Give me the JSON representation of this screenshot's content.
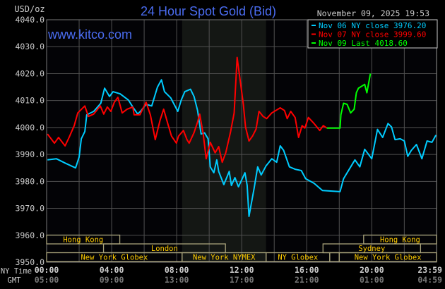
{
  "header": {
    "unit": "USD/oz",
    "title": "24 Hour Spot Gold (Bid)",
    "datetime": "November 09, 2025 19:53",
    "watermark": "www.kitco.com"
  },
  "legend": [
    {
      "label": "Nov 06 NY close 3976.20",
      "color": "#00ccff"
    },
    {
      "label": "Nov 07 NY close 3999.60",
      "color": "#ff0000"
    },
    {
      "label": "Nov 09 Last 4018.60",
      "color": "#00ff00"
    }
  ],
  "colors": {
    "background": "#000000",
    "plot": "#030306",
    "shade": "#141714",
    "grid": "#505050",
    "axis_text": "#cccccc",
    "gmt_text": "#777777",
    "title": "#4a6cf0",
    "session_text": "#ffcc00",
    "session_border": "#a8a27a"
  },
  "chart_data": {
    "type": "line",
    "title": "24 Hour Spot Gold (Bid)",
    "ylabel": "USD/oz",
    "ylim": [
      3950,
      4040
    ],
    "xlim": [
      "00:00",
      "23:59"
    ],
    "grid": true,
    "legend_position": "top-right",
    "y_ticks": [
      "4040.0",
      "4030.0",
      "4020.0",
      "4010.0",
      "4000.0",
      "3990.0",
      "3980.0",
      "3970.0",
      "3960.0",
      "3950.0"
    ],
    "x_axis_label_ny": "NY Time",
    "x_axis_label_gmt": "GMT",
    "x_ticks_ny": [
      "00:00",
      "04:00",
      "08:00",
      "12:00",
      "16:00",
      "20:00",
      "23:59"
    ],
    "x_ticks_gmt": [
      "05:00",
      "09:00",
      "13:00",
      "17:00",
      "21:00",
      "01:00",
      "04:59"
    ],
    "shaded_range": [
      "08:20",
      "13:30"
    ],
    "sessions": [
      {
        "label": "Hong Kong",
        "row": 1,
        "start": "00:00",
        "end": "04:30"
      },
      {
        "label": "Hong Kong",
        "row": 1,
        "start": "19:30",
        "end": "23:59"
      },
      {
        "label": "London",
        "row": 2,
        "start": "03:30",
        "end": "11:00"
      },
      {
        "label": "Sydney",
        "row": 2,
        "start": "17:00",
        "end": "23:00"
      },
      {
        "label": "New York Globex",
        "row": 3,
        "start": "00:00",
        "end": "08:20"
      },
      {
        "label": "New York NYMEX",
        "row": 3,
        "start": "08:20",
        "end": "13:30"
      },
      {
        "label": "NY Globex",
        "row": 3,
        "start": "13:30",
        "end": "17:25"
      },
      {
        "label": "",
        "row": 3,
        "start": "17:25",
        "end": "18:00"
      },
      {
        "label": "New York Globex",
        "row": 3,
        "start": "18:00",
        "end": "23:59"
      }
    ],
    "series": [
      {
        "name": "Nov 06 NY close 3976.20",
        "color": "#00ccff",
        "points": [
          [
            "00:03",
            3988.0
          ],
          [
            "00:36",
            3988.4
          ],
          [
            "01:10",
            3986.7
          ],
          [
            "01:47",
            3985.0
          ],
          [
            "02:00",
            3989.0
          ],
          [
            "02:08",
            3995.8
          ],
          [
            "02:21",
            3998.5
          ],
          [
            "02:28",
            4004.7
          ],
          [
            "02:54",
            4006.0
          ],
          [
            "03:20",
            4009.0
          ],
          [
            "03:34",
            4014.6
          ],
          [
            "03:52",
            4011.5
          ],
          [
            "04:05",
            4013.3
          ],
          [
            "04:31",
            4012.5
          ],
          [
            "05:02",
            4010.2
          ],
          [
            "05:18",
            4007.6
          ],
          [
            "05:36",
            4005.0
          ],
          [
            "05:49",
            4006.3
          ],
          [
            "06:07",
            4008.6
          ],
          [
            "06:28",
            4008.0
          ],
          [
            "06:49",
            4015.0
          ],
          [
            "07:04",
            4017.7
          ],
          [
            "07:15",
            4013.3
          ],
          [
            "07:38",
            4011.0
          ],
          [
            "08:04",
            4006.0
          ],
          [
            "08:17",
            4010.2
          ],
          [
            "08:30",
            4013.3
          ],
          [
            "08:51",
            4014.2
          ],
          [
            "09:04",
            4011.5
          ],
          [
            "09:17",
            4006.3
          ],
          [
            "09:30",
            3997.6
          ],
          [
            "09:43",
            3998.0
          ],
          [
            "09:56",
            3995.8
          ],
          [
            "10:04",
            3985.4
          ],
          [
            "10:17",
            3983.2
          ],
          [
            "10:28",
            3988.0
          ],
          [
            "10:35",
            3983.7
          ],
          [
            "10:54",
            3978.8
          ],
          [
            "11:14",
            3983.7
          ],
          [
            "11:22",
            3978.5
          ],
          [
            "11:35",
            3981.4
          ],
          [
            "11:48",
            3978.0
          ],
          [
            "12:12",
            3983.2
          ],
          [
            "12:20",
            3978.5
          ],
          [
            "12:27",
            3967.0
          ],
          [
            "12:46",
            3977.5
          ],
          [
            "12:59",
            3985.4
          ],
          [
            "13:12",
            3982.4
          ],
          [
            "13:30",
            3985.8
          ],
          [
            "13:51",
            3988.4
          ],
          [
            "14:09",
            3987.1
          ],
          [
            "14:22",
            3993.2
          ],
          [
            "14:35",
            3991.5
          ],
          [
            "14:56",
            3985.4
          ],
          [
            "15:17",
            3984.5
          ],
          [
            "15:40",
            3984.0
          ],
          [
            "15:56",
            3981.0
          ],
          [
            "16:27",
            3979.3
          ],
          [
            "16:58",
            3976.6
          ],
          [
            "18:03",
            3976.2
          ],
          [
            "18:16",
            3981.0
          ],
          [
            "18:32",
            3983.7
          ],
          [
            "18:58",
            3988.0
          ],
          [
            "19:16",
            3985.4
          ],
          [
            "19:34",
            3991.9
          ],
          [
            "20:00",
            3988.4
          ],
          [
            "20:21",
            3999.3
          ],
          [
            "20:40",
            3996.3
          ],
          [
            "21:00",
            4001.5
          ],
          [
            "21:13",
            4000.2
          ],
          [
            "21:26",
            3995.5
          ],
          [
            "21:45",
            3995.8
          ],
          [
            "22:00",
            3995.0
          ],
          [
            "22:13",
            3989.3
          ],
          [
            "22:26",
            3991.5
          ],
          [
            "22:45",
            3993.7
          ],
          [
            "23:05",
            3988.4
          ],
          [
            "23:24",
            3995.0
          ],
          [
            "23:42",
            3994.5
          ],
          [
            "23:57",
            3997.2
          ]
        ]
      },
      {
        "name": "Nov 07 NY close 3999.60",
        "color": "#ff0000",
        "points": [
          [
            "00:03",
            3997.6
          ],
          [
            "00:29",
            3994.2
          ],
          [
            "00:44",
            3996.3
          ],
          [
            "01:08",
            3993.2
          ],
          [
            "01:23",
            3996.3
          ],
          [
            "01:42",
            4000.7
          ],
          [
            "01:55",
            4005.4
          ],
          [
            "02:21",
            4008.0
          ],
          [
            "02:34",
            4004.1
          ],
          [
            "02:54",
            4005.0
          ],
          [
            "03:18",
            4008.0
          ],
          [
            "03:31",
            4005.0
          ],
          [
            "03:44",
            4007.6
          ],
          [
            "03:57",
            4006.0
          ],
          [
            "04:10",
            4009.4
          ],
          [
            "04:23",
            4011.2
          ],
          [
            "04:39",
            4005.4
          ],
          [
            "04:57",
            4006.8
          ],
          [
            "05:18",
            4007.6
          ],
          [
            "05:23",
            4004.7
          ],
          [
            "05:44",
            4004.7
          ],
          [
            "06:07",
            4009.4
          ],
          [
            "06:23",
            4004.7
          ],
          [
            "06:41",
            3995.5
          ],
          [
            "06:59",
            4002.8
          ],
          [
            "07:12",
            4006.8
          ],
          [
            "07:28",
            4001.1
          ],
          [
            "07:41",
            3996.8
          ],
          [
            "07:59",
            3994.2
          ],
          [
            "08:07",
            3996.8
          ],
          [
            "08:25",
            3998.9
          ],
          [
            "08:38",
            3995.5
          ],
          [
            "08:46",
            3994.2
          ],
          [
            "09:04",
            3998.1
          ],
          [
            "09:17",
            4002.0
          ],
          [
            "09:25",
            4005.0
          ],
          [
            "09:38",
            3997.6
          ],
          [
            "09:49",
            3988.4
          ],
          [
            "10:04",
            3994.5
          ],
          [
            "10:22",
            3990.6
          ],
          [
            "10:35",
            3992.9
          ],
          [
            "10:48",
            3987.1
          ],
          [
            "11:01",
            3990.6
          ],
          [
            "11:19",
            3998.5
          ],
          [
            "11:32",
            4005.4
          ],
          [
            "11:43",
            4026.0
          ],
          [
            "11:53",
            4018.5
          ],
          [
            "12:06",
            4008.6
          ],
          [
            "12:14",
            4000.2
          ],
          [
            "12:27",
            3995.0
          ],
          [
            "12:40",
            3996.8
          ],
          [
            "12:53",
            3999.4
          ],
          [
            "13:04",
            4006.0
          ],
          [
            "13:19",
            4004.1
          ],
          [
            "13:32",
            4003.3
          ],
          [
            "13:51",
            4005.4
          ],
          [
            "14:22",
            4007.3
          ],
          [
            "14:38",
            4006.3
          ],
          [
            "14:48",
            4003.3
          ],
          [
            "15:01",
            4006.0
          ],
          [
            "15:17",
            4003.7
          ],
          [
            "15:30",
            3996.3
          ],
          [
            "15:43",
            4000.7
          ],
          [
            "15:53",
            3999.8
          ],
          [
            "16:06",
            4003.7
          ],
          [
            "16:27",
            4001.5
          ],
          [
            "16:48",
            3998.9
          ],
          [
            "17:01",
            4000.7
          ],
          [
            "17:14",
            3999.8
          ]
        ]
      },
      {
        "name": "Nov 09 Last 4018.60",
        "color": "#00ff00",
        "points": [
          [
            "17:14",
            3999.8
          ],
          [
            "18:03",
            3999.8
          ],
          [
            "18:06",
            4004.7
          ],
          [
            "18:16",
            4009.0
          ],
          [
            "18:29",
            4008.6
          ],
          [
            "18:42",
            4005.4
          ],
          [
            "18:55",
            4006.8
          ],
          [
            "19:03",
            4012.9
          ],
          [
            "19:11",
            4014.6
          ],
          [
            "19:34",
            4016.0
          ],
          [
            "19:42",
            4012.9
          ],
          [
            "19:55",
            4020.0
          ]
        ]
      }
    ]
  }
}
